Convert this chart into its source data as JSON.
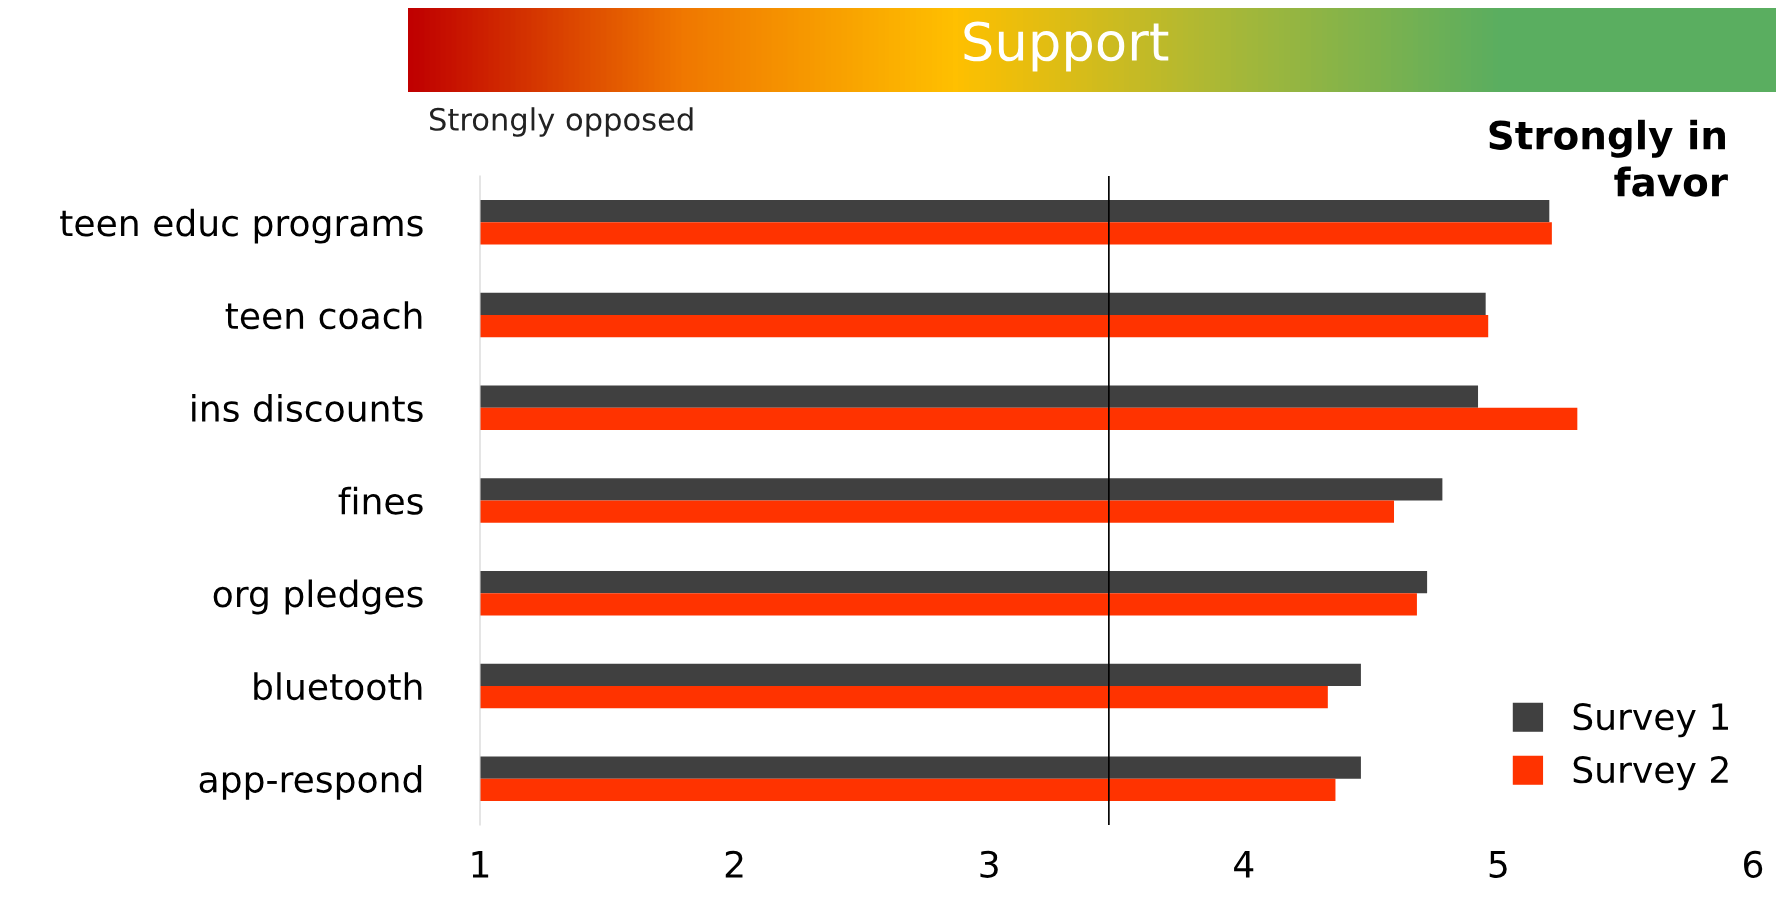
{
  "chart_data": {
    "type": "bar",
    "orientation": "horizontal",
    "categories": [
      "teen educ programs",
      "teen coach",
      "ins discounts",
      "fines",
      "org pledges",
      "bluetooth",
      "app-respond"
    ],
    "series": [
      {
        "name": "Survey 1",
        "color": "#404040",
        "values": [
          5.2,
          4.95,
          4.92,
          4.78,
          4.72,
          4.46,
          4.46
        ]
      },
      {
        "name": "Survey 2",
        "color": "#ff3300",
        "values": [
          5.21,
          4.96,
          5.31,
          4.59,
          4.68,
          4.33,
          4.36
        ]
      }
    ],
    "xlim": [
      1,
      6
    ],
    "xticks": [
      1,
      2,
      3,
      4,
      5,
      6
    ],
    "ref_lines": [
      {
        "axis": "x",
        "value": 3.47,
        "color": "#000000"
      }
    ],
    "annotations": [
      "Support",
      "Strongly opposed",
      "Strongly in favor"
    ],
    "grid": false,
    "legend": "bottom right"
  }
}
